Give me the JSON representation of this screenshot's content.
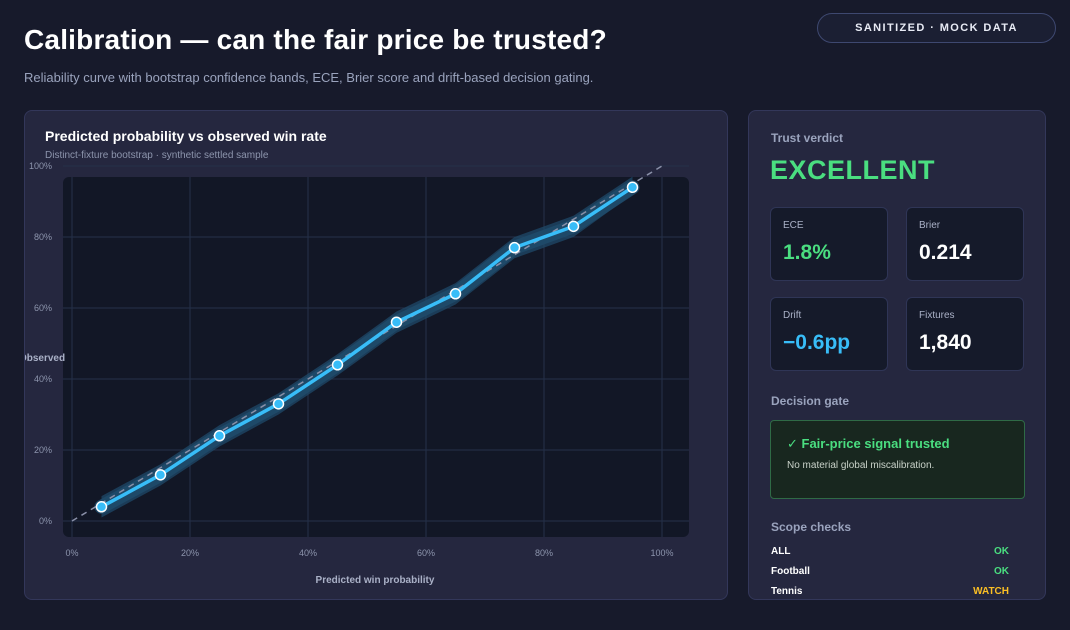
{
  "header": {
    "title": "Calibration — can the fair price be trusted?",
    "subtitle": "Reliability curve with bootstrap confidence bands, ECE, Brier score and drift-based decision gating.",
    "badge": "SANITIZED · MOCK DATA"
  },
  "chart_panel": {
    "title": "Predicted probability vs observed win rate",
    "subtitle": "Distinct-fixture bootstrap · synthetic settled sample"
  },
  "chart_data": {
    "type": "line",
    "xlabel": "Predicted win probability",
    "ylabel": "Observed",
    "xlim": [
      0,
      1
    ],
    "ylim": [
      0,
      1
    ],
    "x_ticks": [
      "0%",
      "20%",
      "40%",
      "60%",
      "80%",
      "100%"
    ],
    "y_ticks": [
      "0%",
      "20%",
      "40%",
      "60%",
      "80%",
      "100%"
    ],
    "grid": true,
    "reference_line": "diagonal",
    "series": [
      {
        "x": [
          0.05,
          0.15,
          0.25,
          0.35,
          0.45,
          0.55,
          0.65,
          0.75,
          0.85,
          0.95
        ],
        "y": [
          0.04,
          0.13,
          0.24,
          0.33,
          0.44,
          0.56,
          0.64,
          0.77,
          0.83,
          0.94
        ],
        "band_lower": [
          0.01,
          0.1,
          0.21,
          0.3,
          0.41,
          0.53,
          0.61,
          0.74,
          0.8,
          0.92
        ],
        "band_upper": [
          0.07,
          0.16,
          0.27,
          0.36,
          0.47,
          0.59,
          0.67,
          0.8,
          0.86,
          0.97
        ]
      }
    ],
    "colors": {
      "line": "#38bdf8",
      "band": "#1f4a6a",
      "reference": "#8a90a8",
      "grid": "#253149",
      "plot_bg": "#121726"
    }
  },
  "side": {
    "verdict_label": "Trust verdict",
    "verdict": "EXCELLENT",
    "metrics": [
      {
        "label": "ECE",
        "value": "1.8%",
        "color": "#4ade80"
      },
      {
        "label": "Brier",
        "value": "0.214",
        "color": "#ffffff"
      },
      {
        "label": "Drift",
        "value": "−0.6pp",
        "color": "#38bdf8"
      },
      {
        "label": "Fixtures",
        "value": "1,840",
        "color": "#ffffff"
      }
    ],
    "gate_label": "Decision gate",
    "gate_title": "✓ Fair-price signal trusted",
    "gate_note": "No material global miscalibration.",
    "scope_label": "Scope checks",
    "scope_checks": [
      {
        "name": "ALL",
        "status": "OK",
        "color": "#4ade80"
      },
      {
        "name": "Football",
        "status": "OK",
        "color": "#4ade80"
      },
      {
        "name": "Tennis",
        "status": "WATCH",
        "color": "#fbbf24"
      }
    ]
  }
}
